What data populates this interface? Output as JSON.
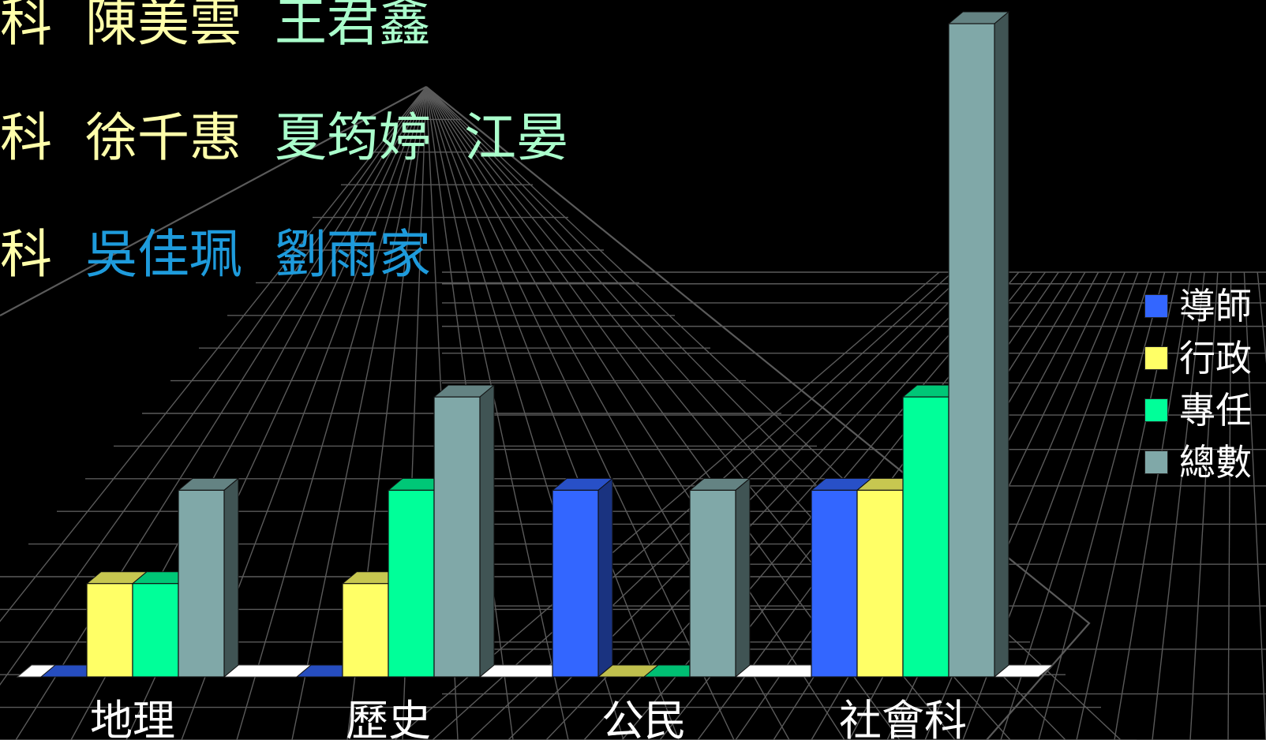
{
  "roster": [
    {
      "subject": "科",
      "names": [
        "陳美雲",
        "王君鑫"
      ],
      "colors": [
        "#ffffaa",
        "#aaffcc"
      ]
    },
    {
      "subject": "科",
      "names": [
        "徐千惠",
        "夏筠婷",
        "江晏"
      ],
      "colors": [
        "#ffffaa",
        "#aaffcc",
        "#aaffcc"
      ]
    },
    {
      "subject": "科",
      "names": [
        "吳佳珮",
        "劉雨家"
      ],
      "colors": [
        "#1e9bdc",
        "#1e9bdc"
      ]
    }
  ],
  "chart_data": {
    "type": "bar",
    "categories": [
      "地理",
      "歷史",
      "公民",
      "社會科"
    ],
    "series": [
      {
        "name": "導師",
        "values": [
          0,
          0,
          2,
          2
        ],
        "color": "#3366ff"
      },
      {
        "name": "行政",
        "values": [
          1,
          1,
          0,
          2
        ],
        "color": "#ffff66"
      },
      {
        "name": "專任",
        "values": [
          1,
          2,
          0,
          3
        ],
        "color": "#00ff99"
      },
      {
        "name": "總數",
        "values": [
          2,
          3,
          2,
          7
        ],
        "color": "#80a8a8"
      }
    ],
    "ylim": [
      0,
      7
    ],
    "legend_position": "right",
    "gridlines": false,
    "style": "3d-clustered-column"
  }
}
